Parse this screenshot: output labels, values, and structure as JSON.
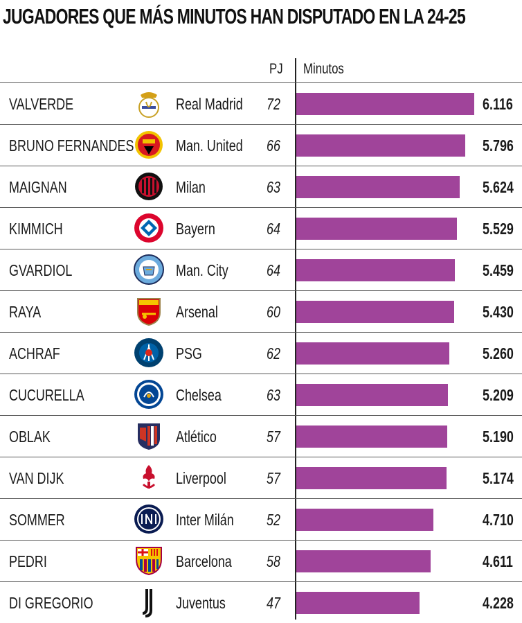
{
  "title": "JUGADORES QUE MÁS MINUTOS HAN DISPUTADO EN LA 24-25",
  "headers": {
    "pj": "PJ",
    "minutes": "Minutos"
  },
  "colors": {
    "bar": "#a0449a",
    "text": "#1a1a1a"
  },
  "chart_data": {
    "type": "bar",
    "orientation": "horizontal",
    "title": "JUGADORES QUE MÁS MINUTOS HAN DISPUTADO EN LA 24-25",
    "categories": [
      "VALVERDE",
      "BRUNO FERNANDES",
      "MAIGNAN",
      "KIMMICH",
      "GVARDIOL",
      "RAYA",
      "ACHRAF",
      "CUCURELLA",
      "OBLAK",
      "VAN DIJK",
      "SOMMER",
      "PEDRI",
      "DI GREGORIO"
    ],
    "values": [
      6116,
      5796,
      5624,
      5529,
      5459,
      5430,
      5260,
      5209,
      5190,
      5174,
      4710,
      4611,
      4228
    ],
    "value_labels": [
      "6.116",
      "5.796",
      "5.624",
      "5.529",
      "5.459",
      "5.430",
      "5.260",
      "5.209",
      "5.190",
      "5.174",
      "4.710",
      "4.611",
      "4.228"
    ],
    "series": [
      {
        "name": "Minutos",
        "values": [
          6116,
          5796,
          5624,
          5529,
          5459,
          5430,
          5260,
          5209,
          5190,
          5174,
          4710,
          4611,
          4228
        ]
      }
    ],
    "xlim": [
      0,
      6116
    ],
    "grid": false
  },
  "rows": [
    {
      "player": "VALVERDE",
      "club": "Real Madrid",
      "pj": "72",
      "minutes": "6.116",
      "icon": "real-madrid-crest-icon"
    },
    {
      "player": "BRUNO FERNANDES",
      "club": "Man. United",
      "pj": "66",
      "minutes": "5.796",
      "icon": "man-united-crest-icon"
    },
    {
      "player": "MAIGNAN",
      "club": "Milan",
      "pj": "63",
      "minutes": "5.624",
      "icon": "milan-crest-icon"
    },
    {
      "player": "KIMMICH",
      "club": "Bayern",
      "pj": "64",
      "minutes": "5.529",
      "icon": "bayern-crest-icon"
    },
    {
      "player": "GVARDIOL",
      "club": "Man. City",
      "pj": "64",
      "minutes": "5.459",
      "icon": "man-city-crest-icon"
    },
    {
      "player": "RAYA",
      "club": "Arsenal",
      "pj": "60",
      "minutes": "5.430",
      "icon": "arsenal-crest-icon"
    },
    {
      "player": "ACHRAF",
      "club": "PSG",
      "pj": "62",
      "minutes": "5.260",
      "icon": "psg-crest-icon"
    },
    {
      "player": "CUCURELLA",
      "club": "Chelsea",
      "pj": "63",
      "minutes": "5.209",
      "icon": "chelsea-crest-icon"
    },
    {
      "player": "OBLAK",
      "club": "Atlético",
      "pj": "57",
      "minutes": "5.190",
      "icon": "atletico-crest-icon"
    },
    {
      "player": "VAN DIJK",
      "club": "Liverpool",
      "pj": "57",
      "minutes": "5.174",
      "icon": "liverpool-crest-icon"
    },
    {
      "player": "SOMMER",
      "club": "Inter Milán",
      "pj": "52",
      "minutes": "4.710",
      "icon": "inter-crest-icon"
    },
    {
      "player": "PEDRI",
      "club": "Barcelona",
      "pj": "58",
      "minutes": "4.611",
      "icon": "barcelona-crest-icon"
    },
    {
      "player": "DI GREGORIO",
      "club": "Juventus",
      "pj": "47",
      "minutes": "4.228",
      "icon": "juventus-crest-icon"
    }
  ]
}
